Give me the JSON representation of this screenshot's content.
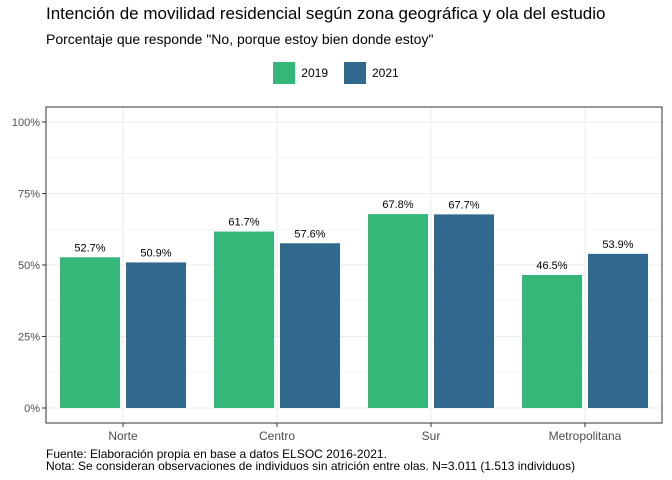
{
  "chart_data": {
    "type": "bar",
    "title": "Intención de movilidad residencial según zona geográfica y ola del estudio",
    "subtitle": "Porcentaje que responde \"No, porque estoy bien donde estoy\"",
    "categories": [
      "Norte",
      "Centro",
      "Sur",
      "Metropolitana"
    ],
    "series": [
      {
        "name": "2019",
        "values": [
          52.7,
          61.7,
          67.8,
          46.5
        ],
        "labels": [
          "52.7%",
          "61.7%",
          "67.8%",
          "46.5%"
        ],
        "color": "#35B779"
      },
      {
        "name": "2021",
        "values": [
          50.9,
          57.6,
          67.7,
          53.9
        ],
        "labels": [
          "50.9%",
          "57.6%",
          "67.7%",
          "53.9%"
        ],
        "color": "#31688E"
      }
    ],
    "yticks": [
      {
        "value": 0,
        "label": "0%"
      },
      {
        "value": 25,
        "label": "25%"
      },
      {
        "value": 50,
        "label": "50%"
      },
      {
        "value": 75,
        "label": "75%"
      },
      {
        "value": 100,
        "label": "100%"
      }
    ],
    "ylim": [
      0,
      100
    ],
    "xlabel": "",
    "ylabel": "",
    "grid": true,
    "legend_position": "top-center"
  },
  "caption": {
    "line1": "Fuente: Elaboración propia en base a datos ELSOC 2016-2021.",
    "line2": "Nota: Se consideran observaciones de individuos sin atrición entre olas. N=3.011 (1.513 individuos)"
  }
}
